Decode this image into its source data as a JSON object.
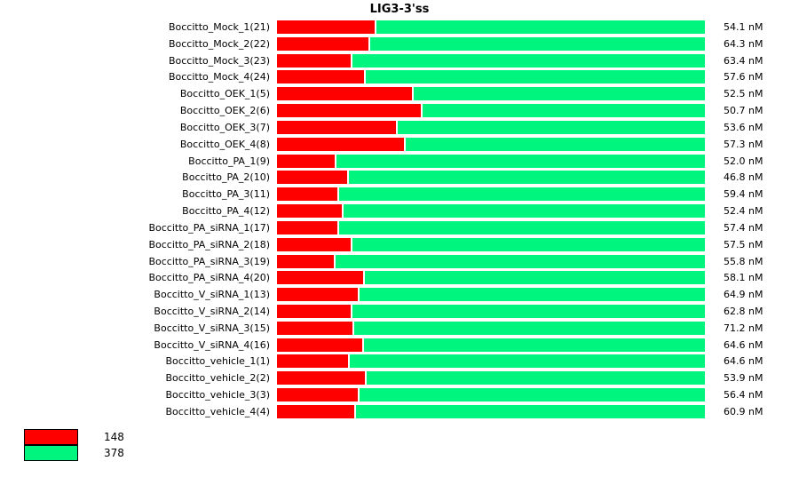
{
  "chart_data": {
    "type": "bar",
    "orientation": "horizontal",
    "stacked": true,
    "title": "LIG3-3'ss",
    "grid": false,
    "legend_position": "bottom-left",
    "categories": [
      "Boccitto_Mock_1(21)",
      "Boccitto_Mock_2(22)",
      "Boccitto_Mock_3(23)",
      "Boccitto_Mock_4(24)",
      "Boccitto_OEK_1(5)",
      "Boccitto_OEK_2(6)",
      "Boccitto_OEK_3(7)",
      "Boccitto_OEK_4(8)",
      "Boccitto_PA_1(9)",
      "Boccitto_PA_2(10)",
      "Boccitto_PA_3(11)",
      "Boccitto_PA_4(12)",
      "Boccitto_PA_siRNA_1(17)",
      "Boccitto_PA_siRNA_2(18)",
      "Boccitto_PA_siRNA_3(19)",
      "Boccitto_PA_siRNA_4(20)",
      "Boccitto_V_siRNA_1(13)",
      "Boccitto_V_siRNA_2(14)",
      "Boccitto_V_siRNA_3(15)",
      "Boccitto_V_siRNA_4(16)",
      "Boccitto_vehicle_1(1)",
      "Boccitto_vehicle_2(2)",
      "Boccitto_vehicle_3(3)",
      "Boccitto_vehicle_4(4)"
    ],
    "series": [
      {
        "name": "148",
        "color": "#FF0000",
        "unit": "percent_of_bar",
        "values": [
          22.8,
          21.4,
          17.2,
          20.3,
          31.5,
          33.6,
          27.8,
          29.7,
          13.5,
          16.4,
          14.1,
          15.1,
          14.1,
          17.2,
          13.3,
          20.1,
          18.9,
          17.2,
          17.6,
          19.9,
          16.6,
          20.5,
          18.9,
          18.0
        ]
      },
      {
        "name": "378",
        "color": "#00F57E",
        "unit": "percent_of_bar",
        "values": [
          77.2,
          78.6,
          82.8,
          79.7,
          68.5,
          66.4,
          72.2,
          70.3,
          86.5,
          83.6,
          85.9,
          84.9,
          85.9,
          82.8,
          86.7,
          79.9,
          81.1,
          82.8,
          82.4,
          80.1,
          83.4,
          79.5,
          81.1,
          82.0
        ]
      }
    ],
    "values_nM": [
      54.1,
      64.3,
      63.4,
      57.6,
      52.5,
      50.7,
      53.6,
      57.3,
      52.0,
      46.8,
      59.4,
      52.4,
      57.4,
      57.5,
      55.8,
      58.1,
      64.9,
      62.8,
      71.2,
      64.6,
      64.6,
      53.9,
      56.4,
      60.9
    ],
    "value_suffix": " nM"
  },
  "legend": {
    "items": [
      {
        "label": "148",
        "color": "#FF0000"
      },
      {
        "label": "378",
        "color": "#00F57E"
      }
    ]
  }
}
